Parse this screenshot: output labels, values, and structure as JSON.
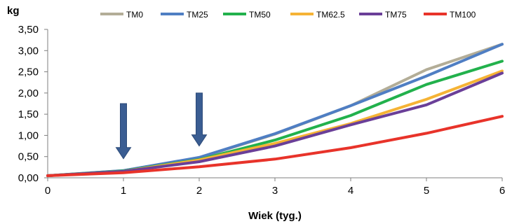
{
  "chart_data": {
    "type": "line",
    "ylabel": "kg",
    "xlabel": "Wiek (tyg.)",
    "x": [
      0,
      1,
      2,
      3,
      4,
      5,
      6
    ],
    "xticks": [
      "0",
      "1",
      "2",
      "3",
      "4",
      "5",
      "6"
    ],
    "yticks": [
      "0,00",
      "0,50",
      "1,00",
      "1,50",
      "2,00",
      "2,50",
      "3,00",
      "3,50"
    ],
    "xlim": [
      0,
      6
    ],
    "ylim": [
      0,
      3.5
    ],
    "grid": false,
    "legend_position": "top",
    "series": [
      {
        "name": "TM0",
        "color": "#b3ad97",
        "values": [
          0.05,
          0.17,
          0.47,
          1.03,
          1.7,
          2.55,
          3.15
        ]
      },
      {
        "name": "TM25",
        "color": "#4f7ec3",
        "values": [
          0.05,
          0.17,
          0.48,
          1.04,
          1.7,
          2.4,
          3.15
        ]
      },
      {
        "name": "TM50",
        "color": "#22b14c",
        "values": [
          0.05,
          0.16,
          0.43,
          0.89,
          1.47,
          2.2,
          2.75
        ]
      },
      {
        "name": "TM62.5",
        "color": "#f5b335",
        "values": [
          0.05,
          0.15,
          0.42,
          0.81,
          1.28,
          1.85,
          2.52
        ]
      },
      {
        "name": "TM75",
        "color": "#6a3f98",
        "values": [
          0.05,
          0.15,
          0.38,
          0.75,
          1.25,
          1.72,
          2.47
        ]
      },
      {
        "name": "TM100",
        "color": "#e8332a",
        "values": [
          0.05,
          0.12,
          0.26,
          0.44,
          0.71,
          1.05,
          1.45
        ]
      }
    ],
    "annotations": [
      {
        "type": "down-arrow",
        "x": 1,
        "y_top": 1.75,
        "y_bottom": 0.45,
        "color": "#3a5d92"
      },
      {
        "type": "down-arrow",
        "x": 2,
        "y_top": 2.0,
        "y_bottom": 0.75,
        "color": "#3a5d92"
      }
    ]
  }
}
